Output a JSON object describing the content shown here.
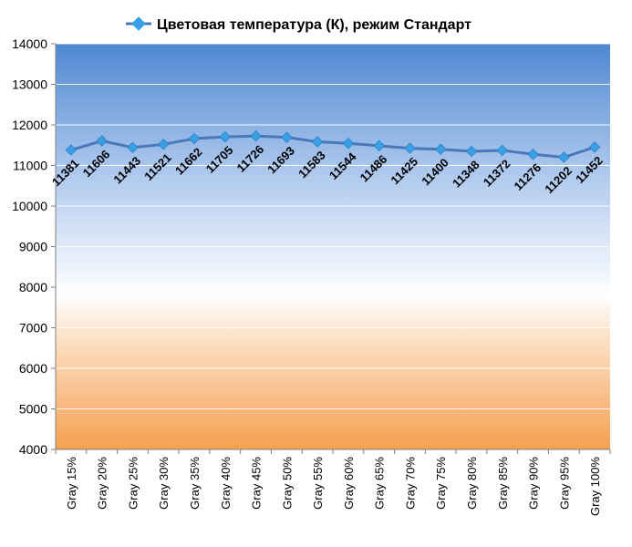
{
  "chart_data": {
    "type": "line",
    "categories": [
      "Gray 15%",
      "Gray 20%",
      "Gray 25%",
      "Gray 30%",
      "Gray 35%",
      "Gray 40%",
      "Gray 45%",
      "Gray 50%",
      "Gray 55%",
      "Gray 60%",
      "Gray 65%",
      "Gray 70%",
      "Gray 75%",
      "Gray 80%",
      "Gray 85%",
      "Gray 90%",
      "Gray 95%",
      "Gray 100%"
    ],
    "series": [
      {
        "name": "Цветовая температура (К), режим Стандарт",
        "values": [
          11381,
          11606,
          11443,
          11521,
          11662,
          11705,
          11726,
          11693,
          11583,
          11544,
          11486,
          11425,
          11400,
          11348,
          11372,
          11276,
          11202,
          11452
        ],
        "labels": [
          "11381",
          "11606",
          "11443",
          "11521",
          "11662",
          "11705",
          "11726",
          "11693",
          "11583",
          "11544",
          "11486",
          "11425",
          "11400",
          "11348",
          "11372",
          "11276",
          "11202",
          "11452"
        ]
      }
    ],
    "yticks": [
      "4000",
      "5000",
      "6000",
      "7000",
      "8000",
      "9000",
      "10000",
      "11000",
      "12000",
      "13000",
      "14000"
    ],
    "ylim": [
      4000,
      14000
    ],
    "grid": true,
    "legend_position": "top-center",
    "colors": {
      "line": "#4a78b8",
      "marker": "#3aa0e6",
      "bg_top": "#4f88d2",
      "bg_mid": "#ffffff",
      "bg_bottom": "#f5a050",
      "grid": "#ffffff"
    }
  }
}
